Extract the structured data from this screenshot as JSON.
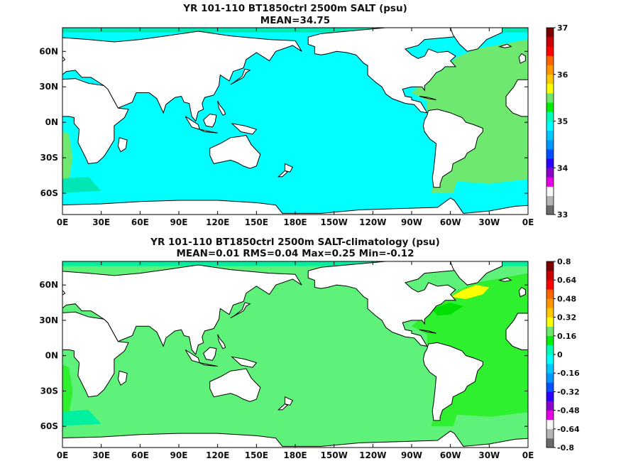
{
  "panels": [
    {
      "title": "YR 101-110 BT1850ctrl 2500m SALT (psu)",
      "subtitle": "MEAN=34.75",
      "lat_labels": [
        "60N",
        "30N",
        "0N",
        "30S",
        "60S"
      ],
      "lon_labels": [
        "0E",
        "30E",
        "60E",
        "90E",
        "120E",
        "150E",
        "180E",
        "150W",
        "120W",
        "90W",
        "60W",
        "30W",
        "0E"
      ],
      "colorbar_labels": [
        "37",
        "36",
        "35",
        "34",
        "33"
      ],
      "colorbar_colors": [
        "#6b6b6b",
        "#b4b4b4",
        "#f7f7f7",
        "#e600e6",
        "#8c00c8",
        "#2b00ff",
        "#0050ff",
        "#0096ff",
        "#00c8ff",
        "#00ffff",
        "#00ffb4",
        "#00f000",
        "#6de86d",
        "#ffff00",
        "#ffc800",
        "#ff9600",
        "#ff6400",
        "#ff0000",
        "#c80000",
        "#7a0000"
      ],
      "fields": {
        "pacific_indian": "#00ffff",
        "atlantic": "#6fe86f",
        "southern": "#00ffff",
        "weddell": "#00e6b4"
      }
    },
    {
      "title": "YR 101-110 BT1850ctrl 2500m SALT-climatology (psu)",
      "subtitle": "MEAN=0.01   RMS=0.04   Max=0.25   Min=-0.12",
      "lat_labels": [
        "60N",
        "30N",
        "0N",
        "30S",
        "60S"
      ],
      "lon_labels": [
        "0E",
        "30E",
        "60E",
        "90E",
        "120E",
        "150E",
        "180E",
        "150W",
        "120W",
        "90W",
        "60W",
        "30W",
        "0E"
      ],
      "colorbar_labels": [
        "0.8",
        "0.64",
        "0.48",
        "0.32",
        "0.16",
        "0",
        "-0.16",
        "-0.32",
        "-0.48",
        "-0.64",
        "-0.8"
      ],
      "colorbar_colors": [
        "#6b6b6b",
        "#b4b4b4",
        "#f7f7f7",
        "#e600e6",
        "#8c00c8",
        "#2b00ff",
        "#0050ff",
        "#0096ff",
        "#00c8ff",
        "#00ffff",
        "#00ffb4",
        "#00f000",
        "#6de86d",
        "#ffff00",
        "#ffc800",
        "#ff9600",
        "#ff6400",
        "#ff0000",
        "#c80000",
        "#7a0000"
      ],
      "fields": {
        "pacific_indian": "#5ef27a",
        "atlantic": "#2ff02f",
        "southern": "#5ef27a",
        "weddell": "#00f0a0"
      }
    }
  ]
}
